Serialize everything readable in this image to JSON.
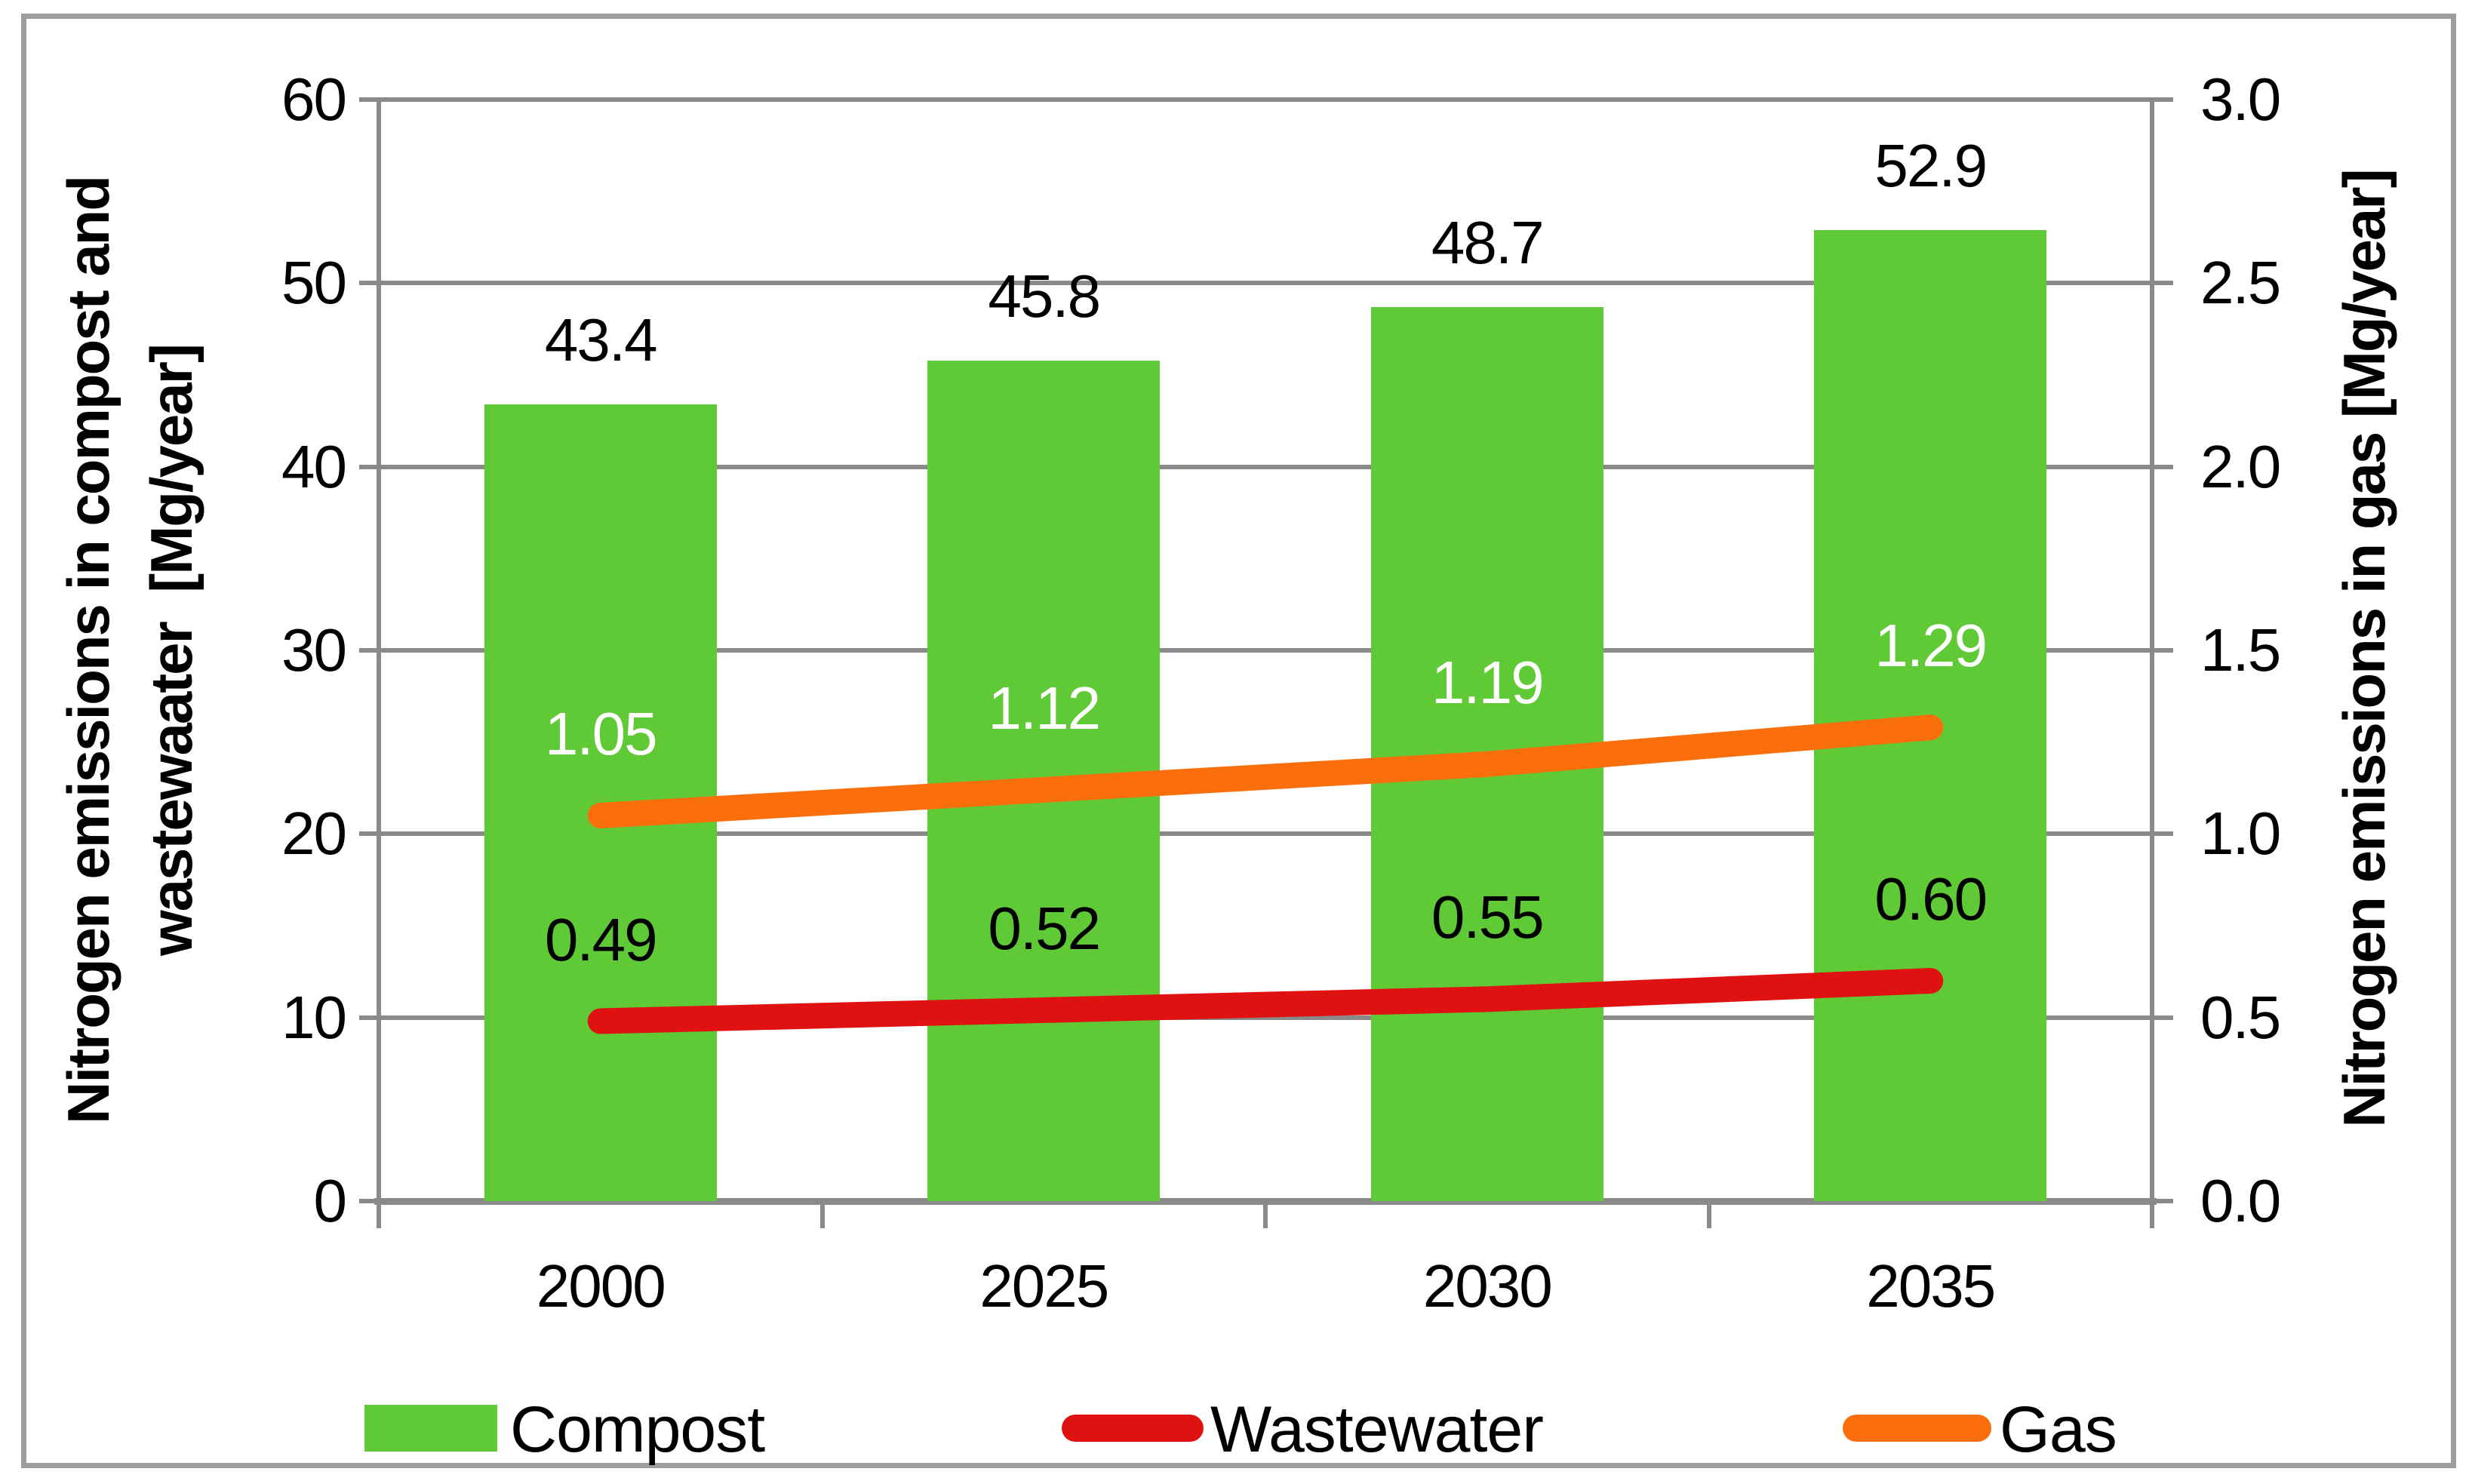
{
  "chart_data": {
    "type": "bar",
    "combo": "bar+line, dual axis",
    "categories": [
      "2000",
      "2025",
      "2030",
      "2035"
    ],
    "series": [
      {
        "name": "Compost",
        "type": "bar",
        "axis": "left",
        "values": [
          43.4,
          45.8,
          48.7,
          52.9
        ],
        "data_labels": [
          "43.4",
          "45.8",
          "48.7",
          "52.9"
        ],
        "label_position": "above bar",
        "label_color": "#000000"
      },
      {
        "name": "Wastewater",
        "type": "line",
        "axis": "right",
        "values": [
          0.49,
          0.52,
          0.55,
          0.6
        ],
        "data_labels": [
          "0.49",
          "0.52",
          "0.55",
          "0.60"
        ],
        "label_position": "above line",
        "label_color": "#000000"
      },
      {
        "name": "Gas",
        "type": "line",
        "axis": "right",
        "values": [
          1.05,
          1.12,
          1.19,
          1.29
        ],
        "data_labels": [
          "1.05",
          "1.12",
          "1.19",
          "1.29"
        ],
        "label_position": "above line",
        "label_color": "#ffffff"
      }
    ],
    "left_axis": {
      "title": "Nitrogen emissions in compost and\nwastewaater  [Mg/year]",
      "min": 0,
      "max": 60,
      "step": 10,
      "ticks": [
        "0",
        "10",
        "20",
        "30",
        "40",
        "50",
        "60"
      ]
    },
    "right_axis": {
      "title": "Nitrogen emissions in gas [Mg/year]",
      "min": 0,
      "max": 3,
      "step": 0.5,
      "ticks": [
        "0.0",
        "0.5",
        "1.0",
        "1.5",
        "2.0",
        "2.5",
        "3.0"
      ]
    },
    "legend": [
      {
        "label": "Compost",
        "swatch": "rect",
        "color": "#5fc936"
      },
      {
        "label": "Wastewater",
        "swatch": "line",
        "color": "#e01111"
      },
      {
        "label": "Gas",
        "swatch": "line",
        "color": "#fb6e0c"
      }
    ],
    "legend_position": "bottom",
    "grid": "horizontal gridlines on",
    "colors": {
      "bar": "#5fc936",
      "wastewater_line": "#e01111",
      "gas_line": "#fb6e0c",
      "gridline": "#8a8a8a",
      "frame_border": "#9e9e9e",
      "background": "#ffffff"
    }
  }
}
